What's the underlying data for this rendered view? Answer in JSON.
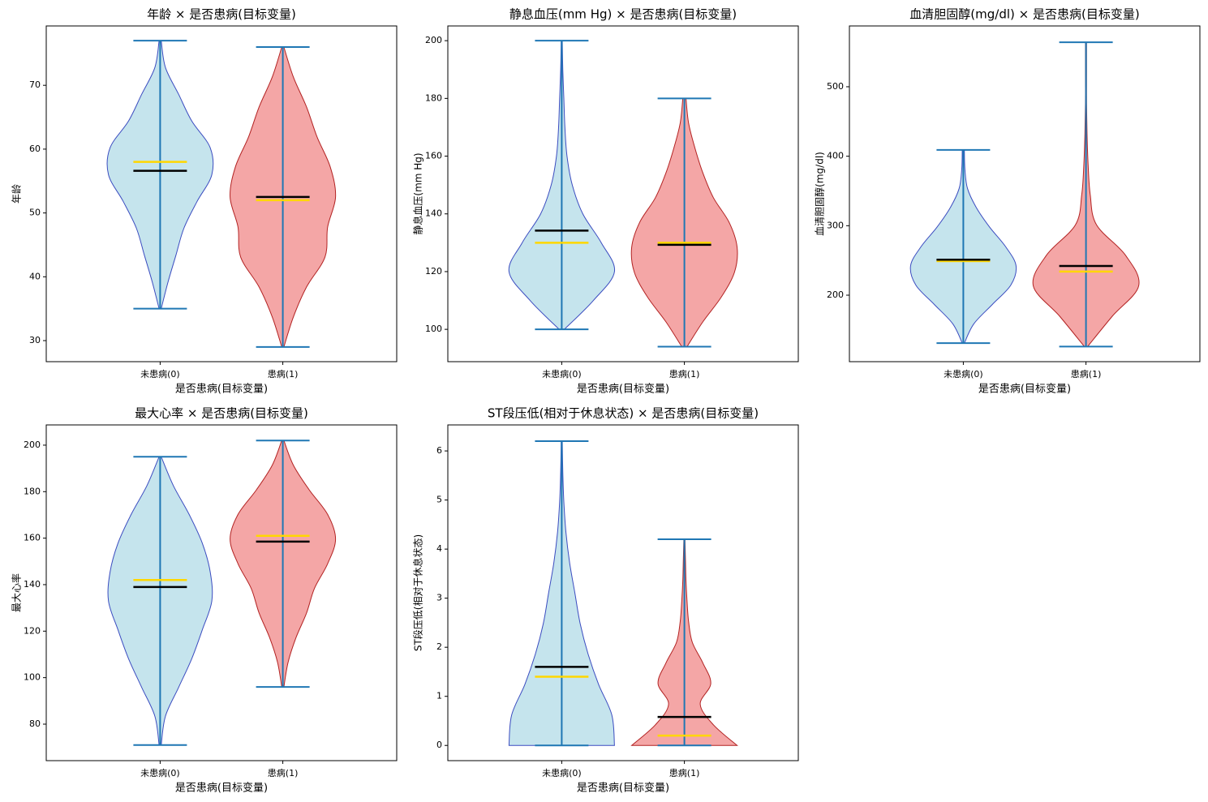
{
  "chart_data": [
    {
      "type": "violin",
      "title": "年龄 × 是否患病(目标变量)",
      "xlabel": "是否患病(目标变量)",
      "ylabel": "年龄",
      "categories": [
        "未患病(0)",
        "患病(1)"
      ],
      "colors": [
        "#add8e6",
        "#f08080"
      ],
      "edgecolors": [
        "#3b4cc0",
        "#b22222"
      ],
      "line_color": "#1f77b4",
      "mean_color": "#000000",
      "median_color": "#ffd700",
      "ylim": [
        26.7,
        79.3
      ],
      "yticks": [
        30,
        40,
        50,
        60,
        70
      ],
      "violins": [
        {
          "min": 35,
          "max": 77,
          "mean": 56.6,
          "median": 58,
          "density": [
            0.02,
            0.15,
            0.3,
            0.45,
            0.7,
            0.98,
            0.95,
            0.6,
            0.35,
            0.1,
            0.02
          ]
        },
        {
          "min": 29,
          "max": 76,
          "mean": 52.5,
          "median": 52,
          "density": [
            0.02,
            0.2,
            0.45,
            0.8,
            0.85,
            1,
            0.9,
            0.65,
            0.45,
            0.2,
            0.02
          ]
        }
      ]
    },
    {
      "type": "violin",
      "title": "静息血压(mm Hg) × 是否患病(目标变量)",
      "xlabel": "是否患病(目标变量)",
      "ylabel": "静息血压(mm Hg)",
      "categories": [
        "未患病(0)",
        "患病(1)"
      ],
      "colors": [
        "#add8e6",
        "#f08080"
      ],
      "edgecolors": [
        "#3b4cc0",
        "#b22222"
      ],
      "line_color": "#1f77b4",
      "mean_color": "#000000",
      "median_color": "#ffd700",
      "ylim": [
        88.8,
        205.1
      ],
      "yticks": [
        100,
        120,
        140,
        160,
        180,
        200
      ],
      "violins": [
        {
          "min": 100,
          "max": 200,
          "mean": 134.2,
          "median": 130,
          "density": [
            0.05,
            0.6,
            1,
            0.75,
            0.4,
            0.2,
            0.1,
            0.06,
            0.04,
            0.02,
            0.01
          ]
        },
        {
          "min": 94,
          "max": 180,
          "mean": 129.3,
          "median": 130,
          "density": [
            0.05,
            0.35,
            0.7,
            0.95,
            1,
            0.85,
            0.55,
            0.35,
            0.2,
            0.08,
            0.03
          ]
        }
      ]
    },
    {
      "type": "violin",
      "title": "血清胆固醇(mg/dl) × 是否患病(目标变量)",
      "xlabel": "是否患病(目标变量)",
      "ylabel": "血清胆固醇(mg/dl)",
      "categories": [
        "未患病(0)",
        "患病(1)"
      ],
      "colors": [
        "#add8e6",
        "#f08080"
      ],
      "edgecolors": [
        "#3b4cc0",
        "#b22222"
      ],
      "line_color": "#1f77b4",
      "mean_color": "#000000",
      "median_color": "#ffd700",
      "ylim": [
        104.3,
        587.5
      ],
      "yticks": [
        200,
        300,
        400,
        500
      ],
      "violins": [
        {
          "min": 131,
          "max": 409,
          "mean": 251,
          "median": 249,
          "density": [
            0.02,
            0.2,
            0.55,
            0.9,
            1,
            0.8,
            0.5,
            0.25,
            0.08,
            0.03,
            0.02
          ]
        },
        {
          "min": 126,
          "max": 564,
          "mean": 242,
          "median": 234,
          "density": [
            0.03,
            0.5,
            1,
            0.75,
            0.2,
            0.08,
            0.04,
            0.02,
            0.01,
            0.01,
            0.01
          ]
        }
      ]
    },
    {
      "type": "violin",
      "title": "最大心率 × 是否患病(目标变量)",
      "xlabel": "是否患病(目标变量)",
      "ylabel": "最大心率",
      "categories": [
        "未患病(0)",
        "患病(1)"
      ],
      "colors": [
        "#add8e6",
        "#f08080"
      ],
      "edgecolors": [
        "#3b4cc0",
        "#b22222"
      ],
      "line_color": "#1f77b4",
      "mean_color": "#000000",
      "median_color": "#ffd700",
      "ylim": [
        64.3,
        208.7
      ],
      "yticks": [
        80,
        100,
        120,
        140,
        160,
        180,
        200
      ],
      "violins": [
        {
          "min": 71,
          "max": 195,
          "mean": 139,
          "median": 142,
          "density": [
            0.02,
            0.1,
            0.35,
            0.6,
            0.8,
            0.98,
            0.95,
            0.8,
            0.55,
            0.25,
            0.02
          ]
        },
        {
          "min": 96,
          "max": 202,
          "mean": 158.5,
          "median": 161,
          "density": [
            0.02,
            0.1,
            0.25,
            0.45,
            0.6,
            0.85,
            1,
            0.85,
            0.5,
            0.2,
            0.02
          ]
        }
      ]
    },
    {
      "type": "violin",
      "title": "ST段压低(相对于休息状态) × 是否患病(目标变量)",
      "xlabel": "是否患病(目标变量)",
      "ylabel": "ST段压低(相对于休息状态)",
      "categories": [
        "未患病(0)",
        "患病(1)"
      ],
      "colors": [
        "#add8e6",
        "#f08080"
      ],
      "edgecolors": [
        "#3b4cc0",
        "#b22222"
      ],
      "line_color": "#1f77b4",
      "mean_color": "#000000",
      "median_color": "#ffd700",
      "ylim": [
        -0.31,
        6.53
      ],
      "yticks": [
        0,
        1,
        2,
        3,
        4,
        5,
        6
      ],
      "violins": [
        {
          "min": 0,
          "max": 6.2,
          "mean": 1.6,
          "median": 1.4,
          "density": [
            1,
            0.95,
            0.7,
            0.5,
            0.35,
            0.25,
            0.15,
            0.08,
            0.04,
            0.02,
            0.01
          ]
        },
        {
          "min": 0,
          "max": 4.2,
          "mean": 0.58,
          "median": 0.2,
          "density": [
            1,
            0.55,
            0.3,
            0.5,
            0.35,
            0.15,
            0.08,
            0.05,
            0.03,
            0.02,
            0.01
          ]
        }
      ]
    }
  ]
}
